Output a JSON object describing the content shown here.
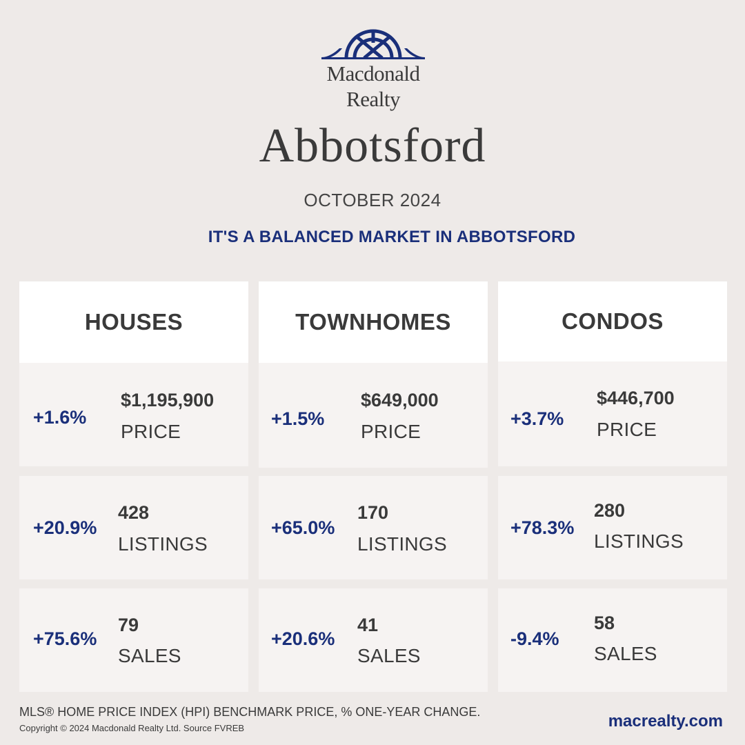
{
  "brand": {
    "line1": "Macdonald",
    "line2": "Realty",
    "accent_color": "#1a2f7a"
  },
  "city": "Abbotsford",
  "month": "OCTOBER 2024",
  "headline": "IT'S A BALANCED MARKET IN ABBOTSFORD",
  "columns": [
    {
      "title": "HOUSES",
      "price": {
        "pct": "+1.6%",
        "value": "$1,195,900",
        "label": "PRICE"
      },
      "listings": {
        "pct": "+20.9%",
        "value": "428",
        "label": "LISTINGS"
      },
      "sales": {
        "pct": "+75.6%",
        "value": "79",
        "label": "SALES"
      }
    },
    {
      "title": "TOWNHOMES",
      "price": {
        "pct": "+1.5%",
        "value": "$649,000",
        "label": "PRICE"
      },
      "listings": {
        "pct": "+65.0%",
        "value": "170",
        "label": "LISTINGS"
      },
      "sales": {
        "pct": "+20.6%",
        "value": "41",
        "label": "SALES"
      }
    },
    {
      "title": "CONDOS",
      "price": {
        "pct": "+3.7%",
        "value": "$446,700",
        "label": "PRICE"
      },
      "listings": {
        "pct": "+78.3%",
        "value": "280",
        "label": "LISTINGS"
      },
      "sales": {
        "pct": "-9.4%",
        "value": "58",
        "label": "SALES"
      }
    }
  ],
  "footer": {
    "note": "MLS® HOME PRICE INDEX (HPI) BENCHMARK PRICE, % ONE-YEAR CHANGE.",
    "copyright": "Copyright © 2024 Macdonald Realty Ltd. Source FVREB",
    "website": "macrealty.com"
  }
}
